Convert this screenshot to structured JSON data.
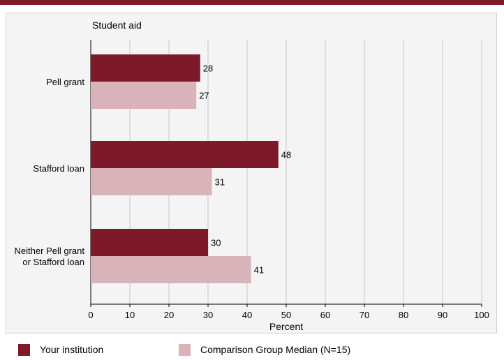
{
  "colors": {
    "primary": "#7d1a2a",
    "secondary": "#d8b4ba",
    "grid": "#c8c8c8",
    "panel": "#f4f4f4"
  },
  "chart_data": {
    "type": "bar",
    "orientation": "horizontal",
    "title": "Student aid",
    "xlabel": "Percent",
    "xlim": [
      0,
      100
    ],
    "xticks": [
      0,
      10,
      20,
      30,
      40,
      50,
      60,
      70,
      80,
      90,
      100
    ],
    "grid": true,
    "legend_position": "bottom",
    "categories": [
      "Pell grant",
      "Stafford loan",
      "Neither Pell grant\nor Stafford loan"
    ],
    "series": [
      {
        "name": "Your institution",
        "color": "#7d1a2a",
        "values": [
          28,
          48,
          30
        ]
      },
      {
        "name": "Comparison Group Median (N=15)",
        "color": "#d8b4ba",
        "values": [
          27,
          31,
          41
        ]
      }
    ]
  }
}
